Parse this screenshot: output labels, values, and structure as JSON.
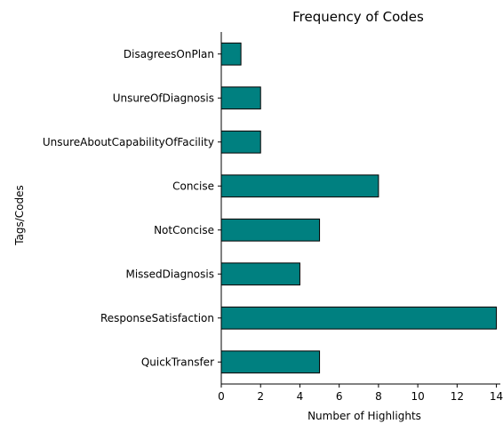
{
  "colors": {
    "bar": "#008080",
    "bar_edge": "#000000"
  },
  "chart_data": {
    "type": "bar",
    "orientation": "horizontal",
    "title": "Frequency of Codes",
    "xlabel": "Number of Highlights",
    "ylabel": "Tags/Codes",
    "categories": [
      "DisagreesOnPlan",
      "UnsureOfDiagnosis",
      "UnsureAboutCapabilityOfFacility",
      "Concise",
      "NotConcise",
      "MissedDiagnosis",
      "ResponseSatisfaction",
      "QuickTransfer"
    ],
    "values": [
      1,
      2,
      2,
      8,
      5,
      4,
      14,
      5
    ],
    "xlim": [
      0,
      14.2
    ],
    "xticks": [
      0,
      2,
      4,
      6,
      8,
      10,
      12,
      14
    ],
    "grid": false,
    "legend": "none"
  }
}
